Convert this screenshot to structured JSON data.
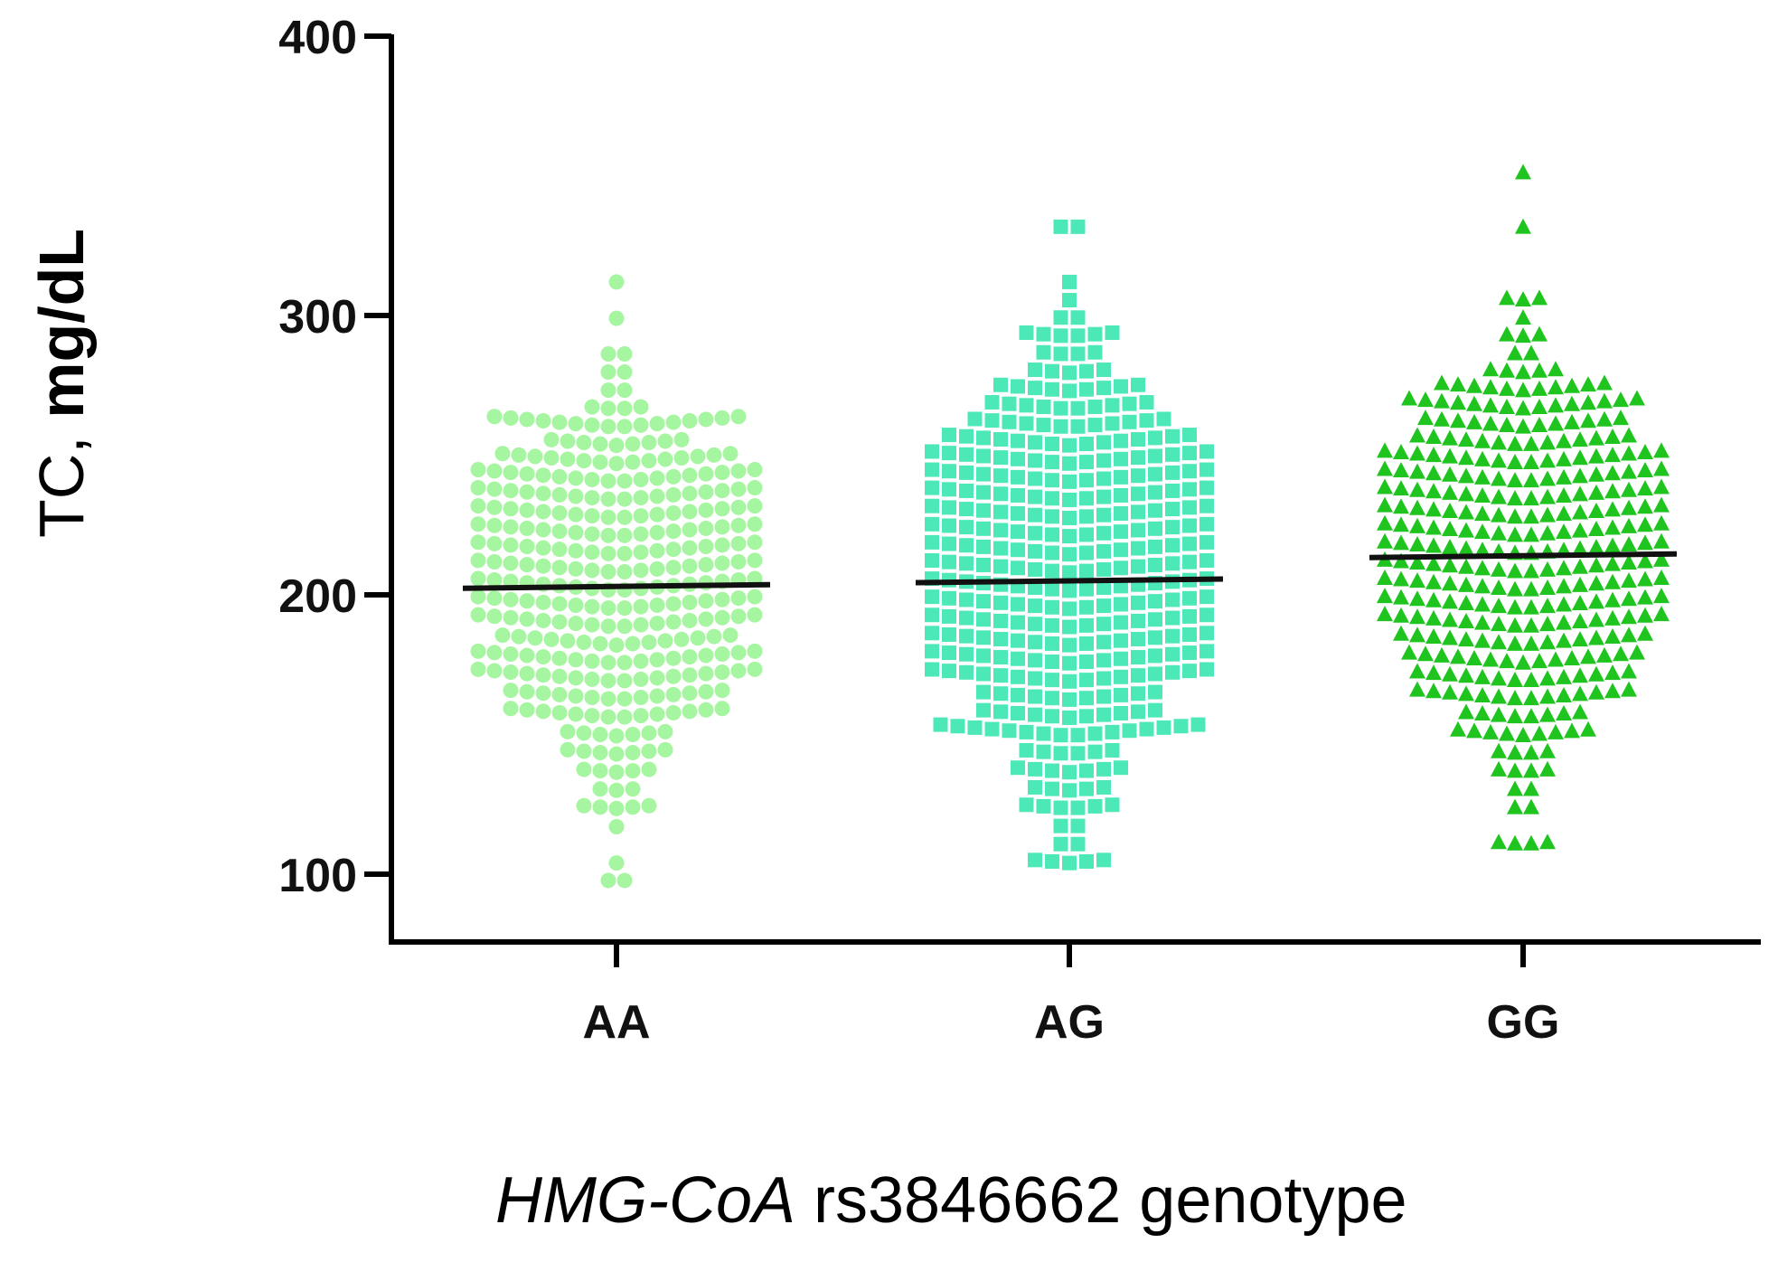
{
  "chart_data": {
    "type": "scatter",
    "subtype": "dot-plot-with-mean",
    "title": "",
    "ylabel": {
      "prefix": "TC, ",
      "unit": "mg/dL"
    },
    "xlabel": {
      "gene": "HMG-CoA",
      "rest": " rs3846662 genotype"
    },
    "ylim": [
      70,
      400
    ],
    "yticks": [
      100,
      200,
      300,
      400
    ],
    "categories": [
      "AA",
      "AG",
      "GG"
    ],
    "series": [
      {
        "name": "AA",
        "marker": "circle",
        "color": "#a6f5a0",
        "mean": 203,
        "min": 96,
        "max": 312,
        "n": 360
      },
      {
        "name": "AG",
        "marker": "square",
        "color": "#4de8b8",
        "mean": 205,
        "min": 101,
        "max": 333,
        "n": 560
      },
      {
        "name": "GG",
        "marker": "triangle",
        "color": "#1fc41f",
        "mean": 214,
        "min": 110,
        "max": 354,
        "n": 420
      }
    ]
  }
}
